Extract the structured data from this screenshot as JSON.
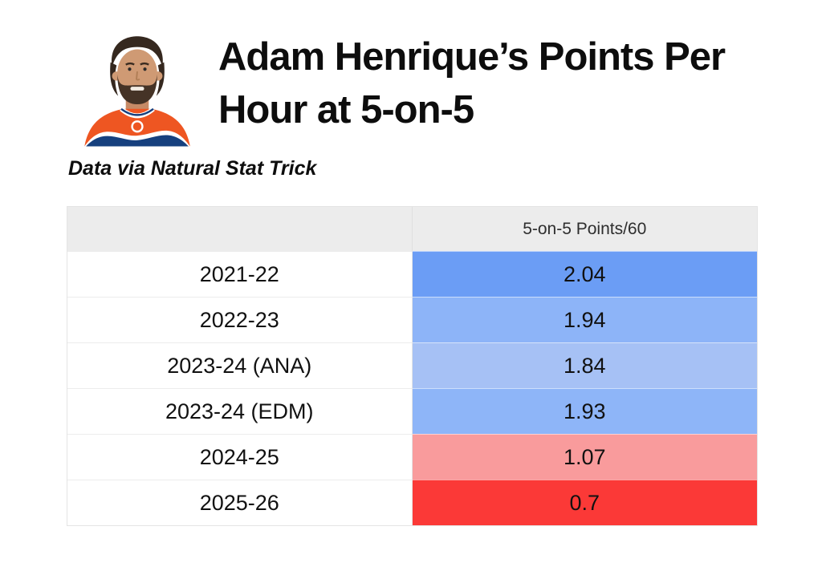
{
  "page": {
    "title_line1": "Adam Henrique’s Points Per",
    "title_line2": "Hour at 5-on-5",
    "subtitle": "Data via Natural Stat Trick"
  },
  "colors": {
    "header_bg": "#ececec",
    "table_border": "#e4e4e4",
    "title_text": "#0d0d0d",
    "cell_text": "#111111"
  },
  "chart_data": {
    "type": "table",
    "title": "Adam Henrique’s Points Per Hour at 5-on-5",
    "subtitle": "Data via Natural Stat Trick",
    "columns": [
      "",
      "5-on-5 Points/60"
    ],
    "rows": [
      {
        "label": "2021-22",
        "value": 2.04,
        "value_text": "2.04",
        "cell_color": "#6b9df5"
      },
      {
        "label": "2022-23",
        "value": 1.94,
        "value_text": "1.94",
        "cell_color": "#8db4f8"
      },
      {
        "label": "2023-24 (ANA)",
        "value": 1.84,
        "value_text": "1.84",
        "cell_color": "#a6c1f5"
      },
      {
        "label": "2023-24 (EDM)",
        "value": 1.93,
        "value_text": "1.93",
        "cell_color": "#8eb5f8"
      },
      {
        "label": "2024-25",
        "value": 1.07,
        "value_text": "1.07",
        "cell_color": "#f99b9c"
      },
      {
        "label": "2025-26",
        "value": 0.7,
        "value_text": "0.7",
        "cell_color": "#fb3937"
      }
    ]
  }
}
